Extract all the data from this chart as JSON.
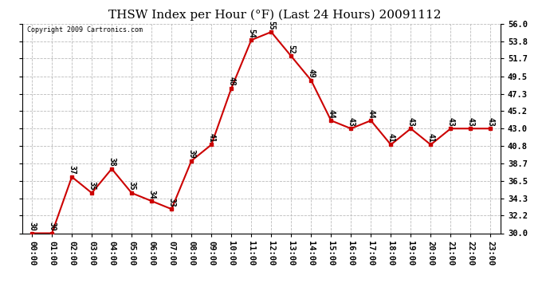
{
  "title": "THSW Index per Hour (°F) (Last 24 Hours) 20091112",
  "copyright": "Copyright 2009 Cartronics.com",
  "hours": [
    "00:00",
    "01:00",
    "02:00",
    "03:00",
    "04:00",
    "05:00",
    "06:00",
    "07:00",
    "08:00",
    "09:00",
    "10:00",
    "11:00",
    "12:00",
    "13:00",
    "14:00",
    "15:00",
    "16:00",
    "17:00",
    "18:00",
    "19:00",
    "20:00",
    "21:00",
    "22:00",
    "23:00"
  ],
  "values": [
    30,
    30,
    37,
    35,
    38,
    35,
    34,
    33,
    39,
    41,
    48,
    54,
    55,
    52,
    49,
    44,
    43,
    44,
    41,
    43,
    41,
    43,
    43,
    43
  ],
  "line_color": "#cc0000",
  "marker_color": "#cc0000",
  "bg_color": "#ffffff",
  "grid_color": "#bbbbbb",
  "ylim_min": 30.0,
  "ylim_max": 56.0,
  "yticks": [
    30.0,
    32.2,
    34.3,
    36.5,
    38.7,
    40.8,
    43.0,
    45.2,
    47.3,
    49.5,
    51.7,
    53.8,
    56.0
  ],
  "title_fontsize": 11,
  "tick_fontsize": 7.5,
  "label_fontsize": 7,
  "copyright_fontsize": 6
}
